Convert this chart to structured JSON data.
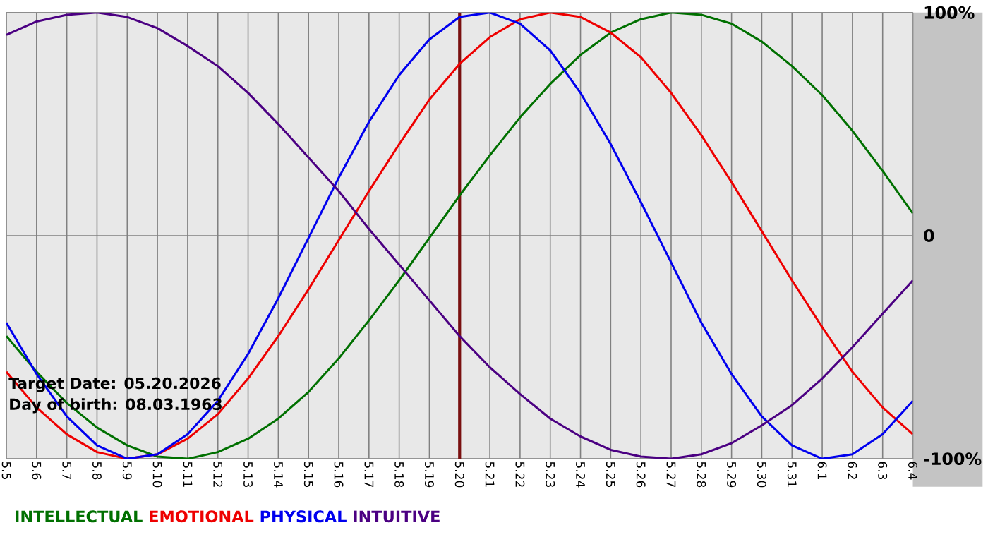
{
  "chart_data": {
    "type": "line",
    "categories": [
      "5.5",
      "5.6",
      "5.7",
      "5.8",
      "5.9",
      "5.10",
      "5.11",
      "5.12",
      "5.13",
      "5.14",
      "5.15",
      "5.16",
      "5.17",
      "5.18",
      "5.19",
      "5.20",
      "5.21",
      "5.22",
      "5.23",
      "5.24",
      "5.25",
      "5.26",
      "5.27",
      "5.28",
      "5.29",
      "5.30",
      "5.31",
      "6.1",
      "6.2",
      "6.3",
      "6.4"
    ],
    "series": [
      {
        "name": "INTELLECTUAL",
        "color": "#007000",
        "values": [
          -45,
          -61,
          -75,
          -86,
          -94,
          -99,
          -100,
          -97,
          -91,
          -82,
          -70,
          -55,
          -38,
          -20,
          -1,
          18,
          36,
          53,
          68,
          81,
          91,
          97,
          100,
          99,
          95,
          87,
          76,
          63,
          47,
          29,
          10
        ]
      },
      {
        "name": "EMOTIONAL",
        "color": "#ee0000",
        "values": [
          -61,
          -77,
          -89,
          -97,
          -100,
          -98,
          -91,
          -80,
          -64,
          -45,
          -24,
          -2,
          20,
          41,
          61,
          77,
          89,
          97,
          100,
          98,
          91,
          80,
          64,
          45,
          24,
          2,
          -20,
          -41,
          -61,
          -77,
          -89
        ]
      },
      {
        "name": "PHYSICAL",
        "color": "#0000ee",
        "values": [
          -39,
          -62,
          -81,
          -94,
          -100,
          -98,
          -89,
          -74,
          -53,
          -28,
          -1,
          26,
          51,
          72,
          88,
          98,
          100,
          95,
          83,
          64,
          41,
          15,
          -12,
          -39,
          -62,
          -81,
          -94,
          -100,
          -98,
          -89,
          -74
        ]
      },
      {
        "name": "INTUITIVE",
        "color": "#4b0082",
        "values": [
          90,
          96,
          99,
          100,
          98,
          93,
          85,
          76,
          64,
          50,
          35,
          20,
          3,
          -13,
          -29,
          -45,
          -59,
          -71,
          -82,
          -90,
          -96,
          -99,
          -100,
          -98,
          -93,
          -85,
          -76,
          -64,
          -50,
          -35,
          -20
        ]
      }
    ],
    "ylim": [
      -100,
      100
    ],
    "yticks": [
      {
        "value": 100,
        "label": "100%"
      },
      0,
      {
        "value": -100,
        "label": "-100%"
      }
    ],
    "ref_lines": [
      {
        "axis": "x",
        "value": "5.20",
        "color": "#7a1010"
      }
    ],
    "annotations": [
      "Target Date: 05.20.2026",
      "Day of birth: 08.03.1963"
    ],
    "grid": true,
    "legend": "bottom left",
    "marker": "none",
    "line_style": "solid"
  }
}
